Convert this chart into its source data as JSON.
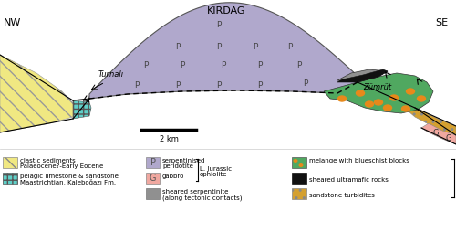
{
  "title": "KIRDAĞ",
  "nw_label": "NW",
  "se_label": "SE",
  "turnali_label": "Turnalı",
  "zumrut_label": "Zümrüt",
  "scalebar_label": "2 km",
  "colors": {
    "clastic": "#f0e882",
    "pelagic": "#60d0c8",
    "serpentinised": "#b0a8cc",
    "gabbro": "#f0a8a0",
    "sheared_serp": "#909090",
    "melange": "#50a860",
    "sheared_ultra": "#111111",
    "sandstone_turb": "#d4a030",
    "background": "#ffffff"
  }
}
